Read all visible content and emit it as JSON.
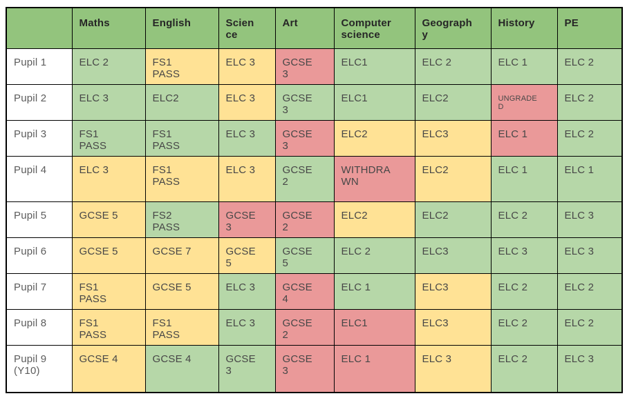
{
  "colors": {
    "header_bg": "#93c47d",
    "green": "#b6d7a8",
    "yellow": "#ffe295",
    "red": "#ea9999",
    "grid": "#000000"
  },
  "table": {
    "corner_label": "",
    "columns": [
      "Maths",
      "English",
      "Science",
      "Art",
      "Computer science",
      "Geography",
      "History",
      "PE"
    ],
    "rows": [
      {
        "pupil": "Pupil 1",
        "cells": [
          {
            "text": "ELC 2",
            "status": "green"
          },
          {
            "text": "FS1 PASS",
            "status": "yellow"
          },
          {
            "text": "ELC 3",
            "status": "yellow"
          },
          {
            "text": "GCSE 3",
            "status": "red"
          },
          {
            "text": "ELC1",
            "status": "green"
          },
          {
            "text": "ELC 2",
            "status": "green"
          },
          {
            "text": "ELC 1",
            "status": "green"
          },
          {
            "text": "ELC 2",
            "status": "green"
          }
        ]
      },
      {
        "pupil": "Pupil 2",
        "cells": [
          {
            "text": "ELC 3",
            "status": "green"
          },
          {
            "text": "ELC2",
            "status": "green"
          },
          {
            "text": "ELC 3",
            "status": "yellow"
          },
          {
            "text": "GCSE 3",
            "status": "green"
          },
          {
            "text": "ELC1",
            "status": "green"
          },
          {
            "text": "ELC2",
            "status": "green"
          },
          {
            "text": "UNGRADED",
            "status": "red"
          },
          {
            "text": "ELC 2",
            "status": "green"
          }
        ]
      },
      {
        "pupil": "Pupil 3",
        "cells": [
          {
            "text": "FS1 PASS",
            "status": "green"
          },
          {
            "text": "FS1 PASS",
            "status": "green"
          },
          {
            "text": "ELC 3",
            "status": "green"
          },
          {
            "text": "GCSE 3",
            "status": "red"
          },
          {
            "text": "ELC2",
            "status": "yellow"
          },
          {
            "text": "ELC3",
            "status": "yellow"
          },
          {
            "text": "ELC 1",
            "status": "red"
          },
          {
            "text": "ELC 2",
            "status": "green"
          }
        ]
      },
      {
        "pupil": "Pupil 4",
        "cells": [
          {
            "text": "ELC 3",
            "status": "yellow"
          },
          {
            "text": "FS1 PASS",
            "status": "yellow"
          },
          {
            "text": "ELC 3",
            "status": "yellow"
          },
          {
            "text": "GCSE 2",
            "status": "green"
          },
          {
            "text": "WITHDRAWN",
            "status": "red"
          },
          {
            "text": "ELC2",
            "status": "yellow"
          },
          {
            "text": "ELC 1",
            "status": "green"
          },
          {
            "text": "ELC 1",
            "status": "green"
          }
        ]
      },
      {
        "pupil": "Pupil 5",
        "cells": [
          {
            "text": "GCSE 5",
            "status": "yellow"
          },
          {
            "text": "FS2 PASS",
            "status": "green"
          },
          {
            "text": "GCSE 3",
            "status": "red"
          },
          {
            "text": "GCSE 2",
            "status": "red"
          },
          {
            "text": "ELC2",
            "status": "yellow"
          },
          {
            "text": "ELC2",
            "status": "green"
          },
          {
            "text": "ELC 2",
            "status": "green"
          },
          {
            "text": "ELC 3",
            "status": "green"
          }
        ]
      },
      {
        "pupil": "Pupil 6",
        "cells": [
          {
            "text": "GCSE 5",
            "status": "yellow"
          },
          {
            "text": "GCSE 7",
            "status": "yellow"
          },
          {
            "text": "GCSE 5",
            "status": "yellow"
          },
          {
            "text": "GCSE 5",
            "status": "green"
          },
          {
            "text": "ELC 2",
            "status": "green"
          },
          {
            "text": "ELC3",
            "status": "green"
          },
          {
            "text": "ELC 3",
            "status": "green"
          },
          {
            "text": "ELC 3",
            "status": "green"
          }
        ]
      },
      {
        "pupil": "Pupil 7",
        "cells": [
          {
            "text": "FS1 PASS",
            "status": "yellow"
          },
          {
            "text": "GCSE 5",
            "status": "yellow"
          },
          {
            "text": "ELC 3",
            "status": "green"
          },
          {
            "text": "GCSE 4",
            "status": "red"
          },
          {
            "text": "ELC 1",
            "status": "green"
          },
          {
            "text": "ELC3",
            "status": "yellow"
          },
          {
            "text": "ELC 2",
            "status": "green"
          },
          {
            "text": "ELC 2",
            "status": "green"
          }
        ]
      },
      {
        "pupil": "Pupil 8",
        "cells": [
          {
            "text": "FS1 PASS",
            "status": "yellow"
          },
          {
            "text": "FS1 PASS",
            "status": "yellow"
          },
          {
            "text": "ELC 3",
            "status": "green"
          },
          {
            "text": "GCSE 2",
            "status": "red"
          },
          {
            "text": "ELC1",
            "status": "red"
          },
          {
            "text": "ELC3",
            "status": "yellow"
          },
          {
            "text": "ELC 2",
            "status": "green"
          },
          {
            "text": "ELC 2",
            "status": "green"
          }
        ]
      },
      {
        "pupil": "Pupil 9 (Y10)",
        "cells": [
          {
            "text": "GCSE 4",
            "status": "yellow"
          },
          {
            "text": "GCSE 4",
            "status": "green"
          },
          {
            "text": "GCSE 3",
            "status": "green"
          },
          {
            "text": "GCSE 3",
            "status": "red"
          },
          {
            "text": "ELC 1",
            "status": "red"
          },
          {
            "text": "ELC 3",
            "status": "yellow"
          },
          {
            "text": "ELC 2",
            "status": "green"
          },
          {
            "text": "ELC 3",
            "status": "green"
          }
        ]
      }
    ]
  }
}
